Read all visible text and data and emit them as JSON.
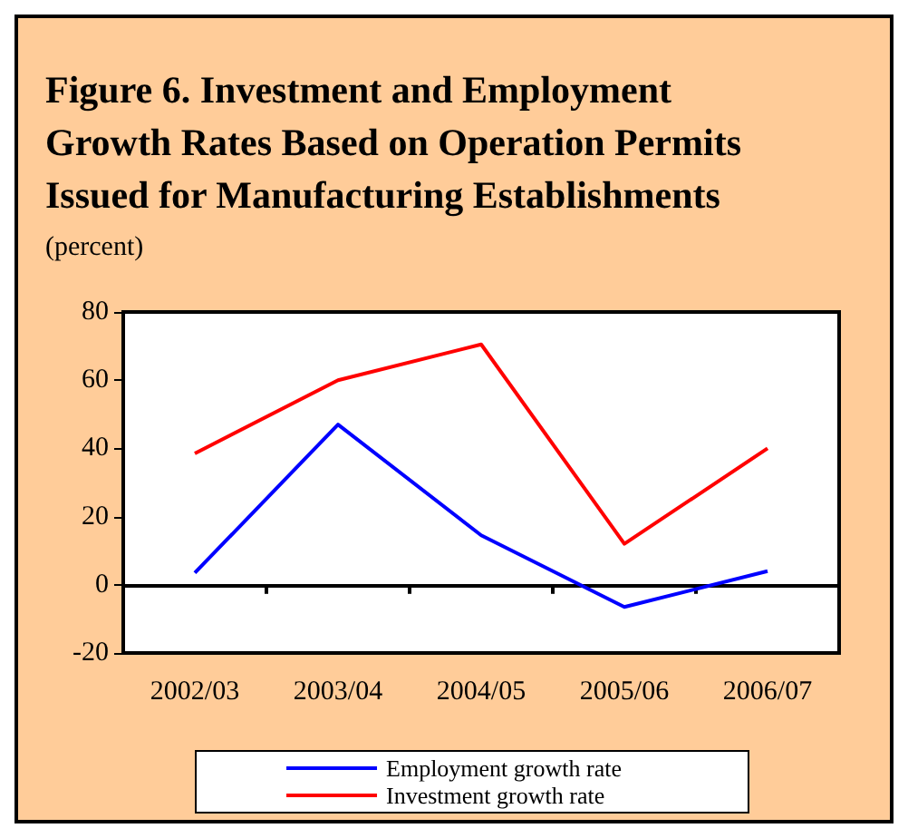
{
  "chart_data": {
    "type": "line",
    "title": "Figure 6. Investment and Employment\nGrowth Rates Based on Operation Permits\nIssued for Manufacturing Establishments",
    "subtitle": "(percent)",
    "categories": [
      "2002/03",
      "2003/04",
      "2004/05",
      "2005/06",
      "2006/07"
    ],
    "series": [
      {
        "name": "Employment growth rate",
        "color": "#0000ff",
        "values": [
          3.5,
          47,
          14.5,
          -6.5,
          4
        ]
      },
      {
        "name": "Investment growth rate",
        "color": "#ff0000",
        "values": [
          38.5,
          60,
          70.5,
          12,
          40
        ]
      }
    ],
    "ylim": [
      -20,
      80
    ],
    "yticks": [
      -20,
      0,
      20,
      40,
      60,
      80
    ],
    "legend": "bottom",
    "marker": "none",
    "line_style": "solid"
  }
}
